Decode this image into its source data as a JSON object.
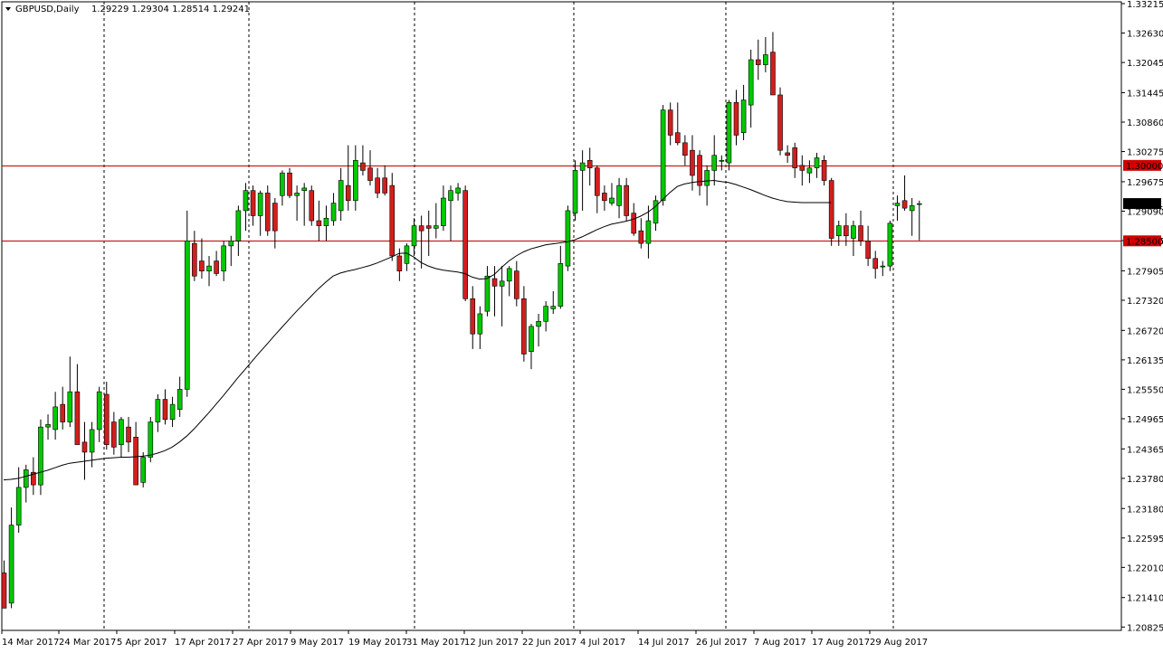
{
  "header": {
    "symbol": "GBPUSD,Daily",
    "ohlc": "1.29229 1.29304 1.28514 1.29241"
  },
  "colors": {
    "bull": "#00c800",
    "bear": "#d21e1e",
    "wick": "#000000",
    "ma": "#000000",
    "level_line": "#c00000",
    "level_tag": "#d00000",
    "current_tag": "#000000"
  },
  "chart_data": {
    "type": "candlestick",
    "title": "GBPUSD,Daily",
    "ylim": [
      1.2083,
      1.33215
    ],
    "y_ticks": [
      "1.33215",
      "1.32630",
      "1.32045",
      "1.31445",
      "1.30860",
      "1.30275",
      "1.29675",
      "1.29090",
      "1.28505",
      "1.27905",
      "1.27320",
      "1.26720",
      "1.26135",
      "1.25550",
      "1.24965",
      "1.24365",
      "1.23780",
      "1.23180",
      "1.22595",
      "1.22010",
      "1.21410",
      "1.20825"
    ],
    "x_labels": [
      "14 Mar 2017",
      "24 Mar 2017",
      "5 Apr 2017",
      "17 Apr 2017",
      "27 Apr 2017",
      "9 May 2017",
      "19 May 2017",
      "31 May 2017",
      "12 Jun 2017",
      "22 Jun 2017",
      "4 Jul 2017",
      "14 Jul 2017",
      "26 Jul 2017",
      "7 Aug 2017",
      "17 Aug 2017",
      "29 Aug 2017"
    ],
    "levels": [
      {
        "label": "1.30000",
        "value": 1.3
      },
      {
        "label": "1.28500",
        "value": 1.285
      }
    ],
    "current": {
      "label": "1.29241",
      "value": 1.29241
    },
    "ma_series": {
      "period_note": "",
      "values": [
        1.2375,
        1.2376,
        1.2378,
        1.2382,
        1.2386,
        1.239,
        1.2394,
        1.2399,
        1.2404,
        1.2408,
        1.241,
        1.2412,
        1.2414,
        1.2416,
        1.2418,
        1.2419,
        1.242,
        1.242,
        1.2421,
        1.2422,
        1.2424,
        1.2428,
        1.2433,
        1.244,
        1.245,
        1.2462,
        1.2476,
        1.2492,
        1.2508,
        1.2525,
        1.2542,
        1.256,
        1.2578,
        1.2595,
        1.2612,
        1.2629,
        1.2645,
        1.2662,
        1.2678,
        1.2694,
        1.271,
        1.2725,
        1.274,
        1.2755,
        1.2768,
        1.278,
        1.2786,
        1.279,
        1.2793,
        1.2797,
        1.2801,
        1.2806,
        1.2812,
        1.2818,
        1.2825,
        1.2826,
        1.2818,
        1.2807,
        1.28,
        1.2795,
        1.2792,
        1.279,
        1.2788,
        1.2785,
        1.2778,
        1.2774,
        1.2775,
        1.2783,
        1.2797,
        1.281,
        1.282,
        1.2828,
        1.2834,
        1.2838,
        1.2842,
        1.2844,
        1.2846,
        1.2848,
        1.2852,
        1.2858,
        1.2865,
        1.2872,
        1.2878,
        1.2883,
        1.2886,
        1.2889,
        1.2893,
        1.2899,
        1.2907,
        1.2918,
        1.2932,
        1.2946,
        1.2958,
        1.2963,
        1.2966,
        1.2968,
        1.2969,
        1.297,
        1.2968,
        1.2966,
        1.2962,
        1.2957,
        1.2952,
        1.2946,
        1.294,
        1.2935,
        1.2931,
        1.2928,
        1.2927,
        1.2926,
        1.2926,
        1.2926,
        1.2926,
        1.2926
      ]
    },
    "candles": [
      {
        "o": 1.219,
        "h": 1.2215,
        "l": 1.212,
        "c": 1.212
      },
      {
        "o": 1.213,
        "h": 1.232,
        "l": 1.212,
        "c": 1.2285
      },
      {
        "o": 1.2285,
        "h": 1.24,
        "l": 1.227,
        "c": 1.236
      },
      {
        "o": 1.236,
        "h": 1.2405,
        "l": 1.233,
        "c": 1.2395
      },
      {
        "o": 1.239,
        "h": 1.242,
        "l": 1.2345,
        "c": 1.2365
      },
      {
        "o": 1.2365,
        "h": 1.2495,
        "l": 1.2345,
        "c": 1.248
      },
      {
        "o": 1.248,
        "h": 1.2505,
        "l": 1.2455,
        "c": 1.2485
      },
      {
        "o": 1.2475,
        "h": 1.255,
        "l": 1.2455,
        "c": 1.252
      },
      {
        "o": 1.2525,
        "h": 1.256,
        "l": 1.2475,
        "c": 1.249
      },
      {
        "o": 1.249,
        "h": 1.262,
        "l": 1.248,
        "c": 1.255
      },
      {
        "o": 1.255,
        "h": 1.2605,
        "l": 1.2455,
        "c": 1.2445
      },
      {
        "o": 1.245,
        "h": 1.249,
        "l": 1.2375,
        "c": 1.243
      },
      {
        "o": 1.243,
        "h": 1.249,
        "l": 1.24,
        "c": 1.2475
      },
      {
        "o": 1.2475,
        "h": 1.256,
        "l": 1.245,
        "c": 1.255
      },
      {
        "o": 1.2545,
        "h": 1.257,
        "l": 1.2435,
        "c": 1.2445
      },
      {
        "o": 1.249,
        "h": 1.251,
        "l": 1.2425,
        "c": 1.244
      },
      {
        "o": 1.2445,
        "h": 1.25,
        "l": 1.242,
        "c": 1.2495
      },
      {
        "o": 1.248,
        "h": 1.25,
        "l": 1.243,
        "c": 1.245
      },
      {
        "o": 1.246,
        "h": 1.249,
        "l": 1.2365,
        "c": 1.2365
      },
      {
        "o": 1.237,
        "h": 1.243,
        "l": 1.236,
        "c": 1.242
      },
      {
        "o": 1.242,
        "h": 1.25,
        "l": 1.241,
        "c": 1.249
      },
      {
        "o": 1.249,
        "h": 1.2545,
        "l": 1.247,
        "c": 1.2535
      },
      {
        "o": 1.2535,
        "h": 1.2555,
        "l": 1.2485,
        "c": 1.2495
      },
      {
        "o": 1.2495,
        "h": 1.254,
        "l": 1.248,
        "c": 1.2525
      },
      {
        "o": 1.2515,
        "h": 1.258,
        "l": 1.25,
        "c": 1.2555
      },
      {
        "o": 1.2555,
        "h": 1.291,
        "l": 1.254,
        "c": 1.285
      },
      {
        "o": 1.2845,
        "h": 1.287,
        "l": 1.277,
        "c": 1.278
      },
      {
        "o": 1.281,
        "h": 1.2855,
        "l": 1.2775,
        "c": 1.279
      },
      {
        "o": 1.279,
        "h": 1.282,
        "l": 1.276,
        "c": 1.28
      },
      {
        "o": 1.281,
        "h": 1.283,
        "l": 1.278,
        "c": 1.2785
      },
      {
        "o": 1.279,
        "h": 1.285,
        "l": 1.277,
        "c": 1.284
      },
      {
        "o": 1.284,
        "h": 1.286,
        "l": 1.28,
        "c": 1.285
      },
      {
        "o": 1.285,
        "h": 1.292,
        "l": 1.282,
        "c": 1.291
      },
      {
        "o": 1.291,
        "h": 1.2965,
        "l": 1.287,
        "c": 1.295
      },
      {
        "o": 1.295,
        "h": 1.296,
        "l": 1.288,
        "c": 1.29
      },
      {
        "o": 1.29,
        "h": 1.295,
        "l": 1.286,
        "c": 1.2945
      },
      {
        "o": 1.2945,
        "h": 1.296,
        "l": 1.286,
        "c": 1.287
      },
      {
        "o": 1.2925,
        "h": 1.2935,
        "l": 1.2835,
        "c": 1.287
      },
      {
        "o": 1.294,
        "h": 1.299,
        "l": 1.292,
        "c": 1.2985
      },
      {
        "o": 1.2985,
        "h": 1.2995,
        "l": 1.2935,
        "c": 1.294
      },
      {
        "o": 1.294,
        "h": 1.296,
        "l": 1.289,
        "c": 1.2945
      },
      {
        "o": 1.295,
        "h": 1.2965,
        "l": 1.288,
        "c": 1.2955
      },
      {
        "o": 1.295,
        "h": 1.296,
        "l": 1.288,
        "c": 1.289
      },
      {
        "o": 1.289,
        "h": 1.293,
        "l": 1.285,
        "c": 1.288
      },
      {
        "o": 1.288,
        "h": 1.292,
        "l": 1.285,
        "c": 1.2895
      },
      {
        "o": 1.289,
        "h": 1.2945,
        "l": 1.288,
        "c": 1.2925
      },
      {
        "o": 1.291,
        "h": 1.2995,
        "l": 1.289,
        "c": 1.297
      },
      {
        "o": 1.296,
        "h": 1.304,
        "l": 1.291,
        "c": 1.293
      },
      {
        "o": 1.293,
        "h": 1.304,
        "l": 1.291,
        "c": 1.301
      },
      {
        "o": 1.3005,
        "h": 1.304,
        "l": 1.298,
        "c": 1.299
      },
      {
        "o": 1.2995,
        "h": 1.303,
        "l": 1.296,
        "c": 1.297
      },
      {
        "o": 1.2975,
        "h": 1.2995,
        "l": 1.2935,
        "c": 1.2945
      },
      {
        "o": 1.2975,
        "h": 1.3,
        "l": 1.294,
        "c": 1.2945
      },
      {
        "o": 1.296,
        "h": 1.2985,
        "l": 1.281,
        "c": 1.282
      },
      {
        "o": 1.282,
        "h": 1.2835,
        "l": 1.277,
        "c": 1.279
      },
      {
        "o": 1.2805,
        "h": 1.2845,
        "l": 1.279,
        "c": 1.284
      },
      {
        "o": 1.284,
        "h": 1.2895,
        "l": 1.282,
        "c": 1.288
      },
      {
        "o": 1.288,
        "h": 1.29,
        "l": 1.2795,
        "c": 1.287
      },
      {
        "o": 1.288,
        "h": 1.291,
        "l": 1.282,
        "c": 1.2875
      },
      {
        "o": 1.2875,
        "h": 1.2925,
        "l": 1.2855,
        "c": 1.288
      },
      {
        "o": 1.288,
        "h": 1.296,
        "l": 1.287,
        "c": 1.2935
      },
      {
        "o": 1.293,
        "h": 1.296,
        "l": 1.285,
        "c": 1.295
      },
      {
        "o": 1.2945,
        "h": 1.2965,
        "l": 1.293,
        "c": 1.2955
      },
      {
        "o": 1.295,
        "h": 1.296,
        "l": 1.273,
        "c": 1.2735
      },
      {
        "o": 1.2735,
        "h": 1.276,
        "l": 1.2635,
        "c": 1.2665
      },
      {
        "o": 1.2665,
        "h": 1.272,
        "l": 1.2635,
        "c": 1.2705
      },
      {
        "o": 1.271,
        "h": 1.28,
        "l": 1.27,
        "c": 1.278
      },
      {
        "o": 1.2775,
        "h": 1.28,
        "l": 1.27,
        "c": 1.276
      },
      {
        "o": 1.276,
        "h": 1.28,
        "l": 1.268,
        "c": 1.277
      },
      {
        "o": 1.277,
        "h": 1.28,
        "l": 1.274,
        "c": 1.2795
      },
      {
        "o": 1.279,
        "h": 1.281,
        "l": 1.272,
        "c": 1.2735
      },
      {
        "o": 1.2735,
        "h": 1.276,
        "l": 1.261,
        "c": 1.2625
      },
      {
        "o": 1.263,
        "h": 1.2685,
        "l": 1.2595,
        "c": 1.268
      },
      {
        "o": 1.268,
        "h": 1.2705,
        "l": 1.264,
        "c": 1.269
      },
      {
        "o": 1.269,
        "h": 1.273,
        "l": 1.267,
        "c": 1.272
      },
      {
        "o": 1.2715,
        "h": 1.275,
        "l": 1.2705,
        "c": 1.272
      },
      {
        "o": 1.272,
        "h": 1.284,
        "l": 1.2715,
        "c": 1.2805
      },
      {
        "o": 1.28,
        "h": 1.292,
        "l": 1.279,
        "c": 1.291
      },
      {
        "o": 1.2905,
        "h": 1.301,
        "l": 1.289,
        "c": 1.299
      },
      {
        "o": 1.299,
        "h": 1.303,
        "l": 1.291,
        "c": 1.3005
      },
      {
        "o": 1.301,
        "h": 1.3035,
        "l": 1.296,
        "c": 1.2995
      },
      {
        "o": 1.2995,
        "h": 1.3,
        "l": 1.2905,
        "c": 1.294
      },
      {
        "o": 1.2945,
        "h": 1.296,
        "l": 1.291,
        "c": 1.293
      },
      {
        "o": 1.2925,
        "h": 1.2965,
        "l": 1.292,
        "c": 1.2935
      },
      {
        "o": 1.292,
        "h": 1.2975,
        "l": 1.2895,
        "c": 1.296
      },
      {
        "o": 1.296,
        "h": 1.2975,
        "l": 1.289,
        "c": 1.29
      },
      {
        "o": 1.2905,
        "h": 1.2925,
        "l": 1.286,
        "c": 1.2865
      },
      {
        "o": 1.287,
        "h": 1.2895,
        "l": 1.2835,
        "c": 1.2845
      },
      {
        "o": 1.2845,
        "h": 1.292,
        "l": 1.2815,
        "c": 1.289
      },
      {
        "o": 1.2885,
        "h": 1.294,
        "l": 1.287,
        "c": 1.293
      },
      {
        "o": 1.293,
        "h": 1.312,
        "l": 1.292,
        "c": 1.311
      },
      {
        "o": 1.311,
        "h": 1.3125,
        "l": 1.304,
        "c": 1.306
      },
      {
        "o": 1.3065,
        "h": 1.3125,
        "l": 1.304,
        "c": 1.3045
      },
      {
        "o": 1.3045,
        "h": 1.306,
        "l": 1.3,
        "c": 1.302
      },
      {
        "o": 1.303,
        "h": 1.306,
        "l": 1.295,
        "c": 1.298
      },
      {
        "o": 1.302,
        "h": 1.303,
        "l": 1.294,
        "c": 1.296
      },
      {
        "o": 1.296,
        "h": 1.3,
        "l": 1.292,
        "c": 1.299
      },
      {
        "o": 1.299,
        "h": 1.306,
        "l": 1.296,
        "c": 1.302
      },
      {
        "o": 1.301,
        "h": 1.302,
        "l": 1.299,
        "c": 1.301
      },
      {
        "o": 1.3005,
        "h": 1.313,
        "l": 1.299,
        "c": 1.3125
      },
      {
        "o": 1.3125,
        "h": 1.315,
        "l": 1.304,
        "c": 1.306
      },
      {
        "o": 1.3065,
        "h": 1.316,
        "l": 1.305,
        "c": 1.313
      },
      {
        "o": 1.312,
        "h": 1.323,
        "l": 1.3075,
        "c": 1.321
      },
      {
        "o": 1.321,
        "h": 1.325,
        "l": 1.317,
        "c": 1.32
      },
      {
        "o": 1.32,
        "h": 1.3255,
        "l": 1.3185,
        "c": 1.322
      },
      {
        "o": 1.3225,
        "h": 1.3265,
        "l": 1.314,
        "c": 1.314
      },
      {
        "o": 1.314,
        "h": 1.3155,
        "l": 1.302,
        "c": 1.303
      },
      {
        "o": 1.3025,
        "h": 1.304,
        "l": 1.3005,
        "c": 1.302
      },
      {
        "o": 1.3035,
        "h": 1.3045,
        "l": 1.2975,
        "c": 1.2995
      },
      {
        "o": 1.3,
        "h": 1.302,
        "l": 1.296,
        "c": 1.299
      },
      {
        "o": 1.2985,
        "h": 1.301,
        "l": 1.2965,
        "c": 1.2995
      },
      {
        "o": 1.2995,
        "h": 1.3025,
        "l": 1.2975,
        "c": 1.3015
      },
      {
        "o": 1.301,
        "h": 1.302,
        "l": 1.296,
        "c": 1.297
      },
      {
        "o": 1.297,
        "h": 1.2975,
        "l": 1.284,
        "c": 1.2855
      },
      {
        "o": 1.286,
        "h": 1.289,
        "l": 1.284,
        "c": 1.288
      },
      {
        "o": 1.288,
        "h": 1.2905,
        "l": 1.284,
        "c": 1.286
      },
      {
        "o": 1.2855,
        "h": 1.289,
        "l": 1.282,
        "c": 1.288
      },
      {
        "o": 1.288,
        "h": 1.291,
        "l": 1.284,
        "c": 1.285
      },
      {
        "o": 1.285,
        "h": 1.288,
        "l": 1.28,
        "c": 1.2815
      },
      {
        "o": 1.2815,
        "h": 1.283,
        "l": 1.2775,
        "c": 1.2795
      },
      {
        "o": 1.28,
        "h": 1.281,
        "l": 1.278,
        "c": 1.28
      },
      {
        "o": 1.28,
        "h": 1.289,
        "l": 1.279,
        "c": 1.2885
      },
      {
        "o": 1.292,
        "h": 1.294,
        "l": 1.289,
        "c": 1.2925
      },
      {
        "o": 1.293,
        "h": 1.298,
        "l": 1.291,
        "c": 1.2915
      },
      {
        "o": 1.291,
        "h": 1.2935,
        "l": 1.286,
        "c": 1.292
      },
      {
        "o": 1.2923,
        "h": 1.293,
        "l": 1.2851,
        "c": 1.2924
      }
    ]
  }
}
